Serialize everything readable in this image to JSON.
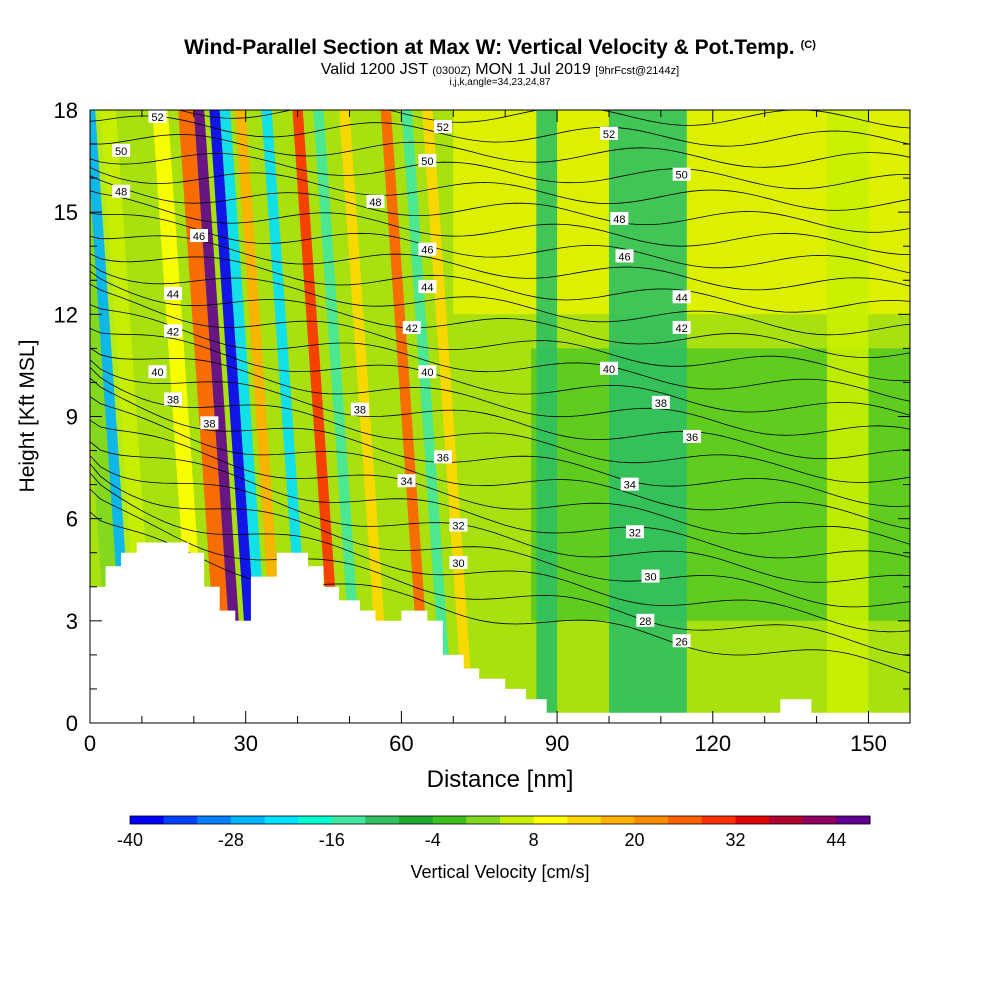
{
  "title": "Wind-Parallel Section at Max W: Vertical Velocity & Pot.Temp.",
  "title_mark": "(C)",
  "subtitle_main": "Valid 1200 JST",
  "subtitle_utc": "(0300Z)",
  "subtitle_date": "MON 1 Jul 2019",
  "subtitle_run": "[9hrFcst@2144z]",
  "subtitle_params": "i,j,k,angle=34,23,24,87",
  "chart_data": {
    "type": "contour",
    "xlabel": "Distance [nm]",
    "ylabel": "Height [Kft MSL]",
    "xlim": [
      0,
      158
    ],
    "ylim": [
      0,
      18
    ],
    "x_ticks": [
      "0",
      "30",
      "60",
      "90",
      "120",
      "150"
    ],
    "y_ticks": [
      "0",
      "3",
      "6",
      "9",
      "12",
      "15",
      "18"
    ],
    "colorbar": {
      "label": "Vertical Velocity [cm/s]",
      "range": [
        -40,
        48
      ],
      "step": 4,
      "tick_labels": [
        "-40",
        "-28",
        "-16",
        "-4",
        "8",
        "20",
        "32",
        "44"
      ],
      "colors": [
        "#0000ff",
        "#0040ff",
        "#0080ff",
        "#00b4ff",
        "#00e0ff",
        "#00ffd0",
        "#40e8a0",
        "#30c060",
        "#20a830",
        "#3cc020",
        "#80d820",
        "#c8f000",
        "#ffff00",
        "#ffd800",
        "#ffb000",
        "#ff8c00",
        "#ff6000",
        "#ff3000",
        "#e00000",
        "#b00030",
        "#900060",
        "#600090"
      ]
    },
    "isentrope_labels": [
      {
        "value": "52",
        "x": 13,
        "y": 17.8
      },
      {
        "value": "50",
        "x": 6,
        "y": 16.8
      },
      {
        "value": "48",
        "x": 6,
        "y": 15.6
      },
      {
        "value": "46",
        "x": 21,
        "y": 14.3
      },
      {
        "value": "44",
        "x": 16,
        "y": 12.6
      },
      {
        "value": "42",
        "x": 16,
        "y": 11.5
      },
      {
        "value": "40",
        "x": 13,
        "y": 10.3
      },
      {
        "value": "38",
        "x": 16,
        "y": 9.5
      },
      {
        "value": "38",
        "x": 23,
        "y": 8.8
      },
      {
        "value": "52",
        "x": 68,
        "y": 17.5
      },
      {
        "value": "50",
        "x": 65,
        "y": 16.5
      },
      {
        "value": "48",
        "x": 55,
        "y": 15.3
      },
      {
        "value": "46",
        "x": 65,
        "y": 13.9
      },
      {
        "value": "44",
        "x": 65,
        "y": 12.8
      },
      {
        "value": "42",
        "x": 62,
        "y": 11.6
      },
      {
        "value": "40",
        "x": 65,
        "y": 10.3
      },
      {
        "value": "38",
        "x": 52,
        "y": 9.2
      },
      {
        "value": "36",
        "x": 68,
        "y": 7.8
      },
      {
        "value": "34",
        "x": 61,
        "y": 7.1
      },
      {
        "value": "32",
        "x": 71,
        "y": 5.8
      },
      {
        "value": "30",
        "x": 71,
        "y": 4.7
      },
      {
        "value": "52",
        "x": 100,
        "y": 17.3
      },
      {
        "value": "50",
        "x": 114,
        "y": 16.1
      },
      {
        "value": "48",
        "x": 102,
        "y": 14.8
      },
      {
        "value": "46",
        "x": 103,
        "y": 13.7
      },
      {
        "value": "44",
        "x": 114,
        "y": 12.5
      },
      {
        "value": "42",
        "x": 114,
        "y": 11.6
      },
      {
        "value": "40",
        "x": 100,
        "y": 10.4
      },
      {
        "value": "38",
        "x": 110,
        "y": 9.4
      },
      {
        "value": "36",
        "x": 116,
        "y": 8.4
      },
      {
        "value": "34",
        "x": 104,
        "y": 7.0
      },
      {
        "value": "32",
        "x": 105,
        "y": 5.6
      },
      {
        "value": "30",
        "x": 108,
        "y": 4.3
      },
      {
        "value": "28",
        "x": 107,
        "y": 3.0
      },
      {
        "value": "26",
        "x": 114,
        "y": 2.4
      }
    ],
    "velocity_bands": [
      {
        "x0": 0,
        "x1": 4,
        "w": 2
      },
      {
        "x0": 3,
        "x1": 6,
        "w": -26
      },
      {
        "x0": 5,
        "x1": 9,
        "w": 4
      },
      {
        "x0": 16,
        "x1": 19,
        "w": 10
      },
      {
        "x0": 21,
        "x1": 24,
        "w": 26
      },
      {
        "x0": 24,
        "x1": 26,
        "w": 46
      },
      {
        "x0": 27,
        "x1": 29,
        "w": -38
      },
      {
        "x0": 29,
        "x1": 31,
        "w": -22
      },
      {
        "x0": 32,
        "x1": 34,
        "w": 20
      },
      {
        "x0": 37,
        "x1": 39,
        "w": -22
      },
      {
        "x0": 43,
        "x1": 45,
        "w": 28
      },
      {
        "x0": 47,
        "x1": 49,
        "w": -14
      },
      {
        "x0": 52,
        "x1": 54,
        "w": 14
      },
      {
        "x0": 60,
        "x1": 62,
        "w": 24
      },
      {
        "x0": 64,
        "x1": 66,
        "w": -14
      },
      {
        "x0": 68,
        "x1": 70,
        "w": 12
      },
      {
        "x0": 86,
        "x1": 90,
        "w": -12
      },
      {
        "x0": 100,
        "x1": 115,
        "w": -10
      },
      {
        "x0": 142,
        "x1": 150,
        "w": 6
      }
    ],
    "terrain": [
      [
        0,
        4.0
      ],
      [
        3,
        4.0
      ],
      [
        3,
        4.6
      ],
      [
        6,
        4.6
      ],
      [
        6,
        5.0
      ],
      [
        9,
        5.0
      ],
      [
        9,
        5.3
      ],
      [
        19,
        5.3
      ],
      [
        19,
        5.0
      ],
      [
        22,
        5.0
      ],
      [
        22,
        4.0
      ],
      [
        25,
        4.0
      ],
      [
        25,
        3.3
      ],
      [
        28,
        3.3
      ],
      [
        28,
        3.0
      ],
      [
        31,
        3.0
      ],
      [
        31,
        4.3
      ],
      [
        36,
        4.3
      ],
      [
        36,
        5.0
      ],
      [
        42,
        5.0
      ],
      [
        42,
        4.6
      ],
      [
        45,
        4.6
      ],
      [
        45,
        4.0
      ],
      [
        48,
        4.0
      ],
      [
        48,
        3.6
      ],
      [
        52,
        3.6
      ],
      [
        52,
        3.3
      ],
      [
        55,
        3.3
      ],
      [
        55,
        3.0
      ],
      [
        60,
        3.0
      ],
      [
        60,
        3.3
      ],
      [
        65,
        3.3
      ],
      [
        65,
        3.0
      ],
      [
        68,
        3.0
      ],
      [
        68,
        2.0
      ],
      [
        72,
        2.0
      ],
      [
        72,
        1.6
      ],
      [
        75,
        1.6
      ],
      [
        75,
        1.3
      ],
      [
        80,
        1.3
      ],
      [
        80,
        1.0
      ],
      [
        84,
        1.0
      ],
      [
        84,
        0.7
      ],
      [
        88,
        0.7
      ],
      [
        88,
        0.3
      ],
      [
        133,
        0.3
      ],
      [
        133,
        0.7
      ],
      [
        139,
        0.7
      ],
      [
        139,
        0.3
      ],
      [
        158,
        0.3
      ]
    ]
  }
}
